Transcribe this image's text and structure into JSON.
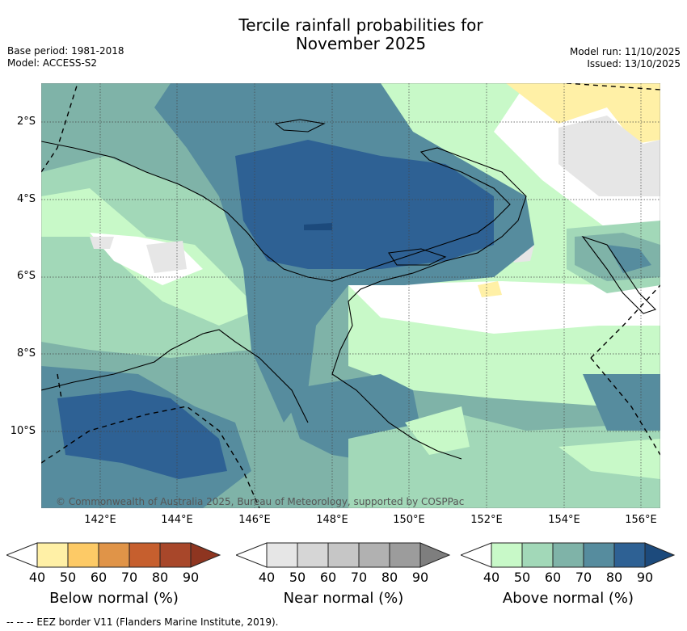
{
  "title_line1": "Tercile rainfall probabilities for",
  "title_line2": "November 2025",
  "base_period": "Base period: 1981-2018",
  "model": "Model: ACCESS-S2",
  "model_run": "Model run: 11/10/2025",
  "issued": "Issued: 13/10/2025",
  "lat_labels": [
    "2°S",
    "4°S",
    "6°S",
    "8°S",
    "10°S"
  ],
  "lon_labels": [
    "142°E",
    "144°E",
    "146°E",
    "148°E",
    "150°E",
    "152°E",
    "154°E",
    "156°E"
  ],
  "copyright": "© Commonwealth of Australia 2025, Bureau of Meteorology, supported by COSPPac",
  "footer": "-- -- -- EEZ border V11 (Flanders Marine Institute, 2019).",
  "colorbars": [
    {
      "title": "Below normal (%)",
      "ticks": [
        "40",
        "50",
        "60",
        "70",
        "80",
        "90"
      ],
      "colors": [
        "#fff0a6",
        "#fdca66",
        "#e09448",
        "#c65f2e",
        "#a8472a",
        "#8e3520"
      ]
    },
    {
      "title": "Near normal (%)",
      "ticks": [
        "40",
        "50",
        "60",
        "70",
        "80",
        "90"
      ],
      "colors": [
        "#e6e6e6",
        "#d6d6d6",
        "#c6c6c6",
        "#b1b1b1",
        "#9c9c9c",
        "#7e7e7e"
      ]
    },
    {
      "title": "Above normal (%)",
      "ticks": [
        "40",
        "50",
        "60",
        "70",
        "80",
        "90"
      ],
      "colors": [
        "#c8f9c8",
        "#a2d8b8",
        "#7fb3a8",
        "#568c9e",
        "#2e6194",
        "#1c4a7c"
      ]
    }
  ]
}
